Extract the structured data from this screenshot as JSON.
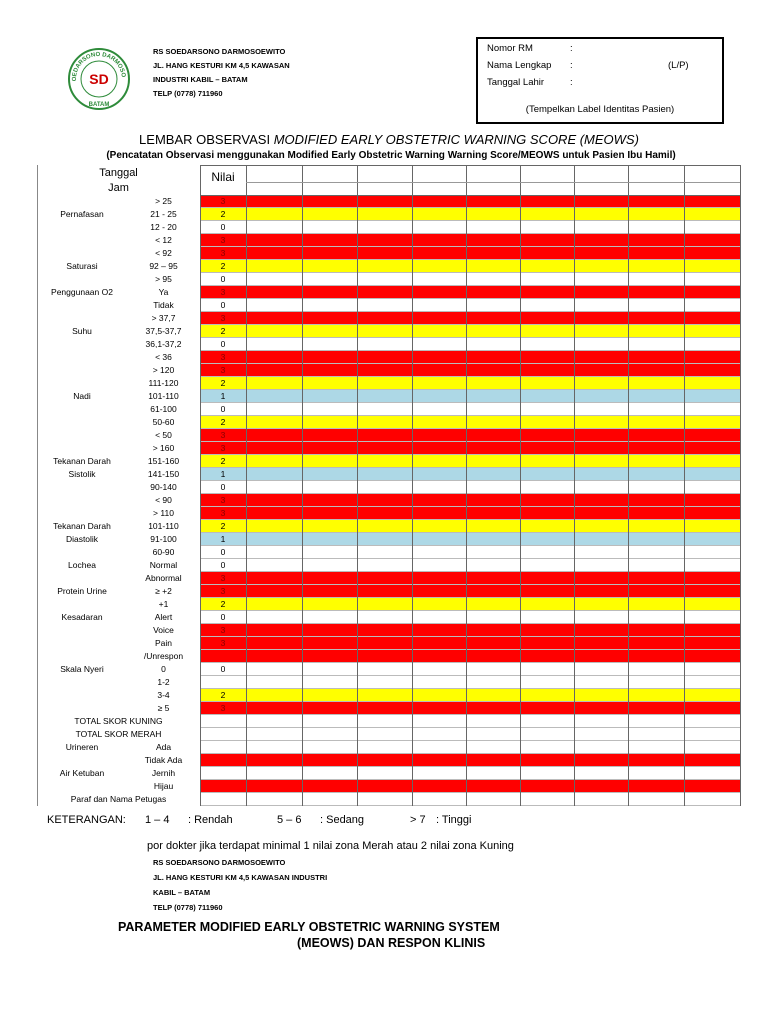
{
  "header": {
    "logo": {
      "ring": "R.S.SOEDARSONO DARMOSOEWITO",
      "mark": "SD",
      "bottom": "BATAM"
    },
    "lines": [
      "RS SOEDARSONO DARMOSOEWITO",
      "JL. HANG KESTURI KM 4,5 KAWASAN",
      "INDUSTRI KABIL – BATAM",
      "TELP (0778) 711960"
    ]
  },
  "patient_box": {
    "fields": [
      {
        "label": "Nomor RM",
        "sep": ":"
      },
      {
        "label": "Nama Lengkap",
        "sep": ":",
        "extra": "(L/P)"
      },
      {
        "label": "Tanggal Lahir",
        "sep": ":"
      }
    ],
    "note": "(Tempelkan Label Identitas Pasien)"
  },
  "title": {
    "plain": "LEMBAR OBSERVASI",
    "italic": "MODIFIED EARLY OBSTETRIC WARNING SCORE (MEOWS)"
  },
  "subtitle": "(Pencatatan Observasi menggunakan Modified Early Obstetric Warning Warning Score/MEOWS untuk Pasien Ibu Hamil)",
  "table": {
    "head": {
      "date": "Tanggal",
      "time": "Jam",
      "score": "Nilai"
    },
    "zone_colors": {
      "red": "#ff0000",
      "yellow": "#ffff00",
      "blue": "#add8e6",
      "white": "#ffffff"
    },
    "rows": [
      {
        "range": "> 25",
        "score": 3,
        "zone": "red"
      },
      {
        "param": "Pernafasan",
        "range": "21 - 25",
        "score": 2,
        "zone": "yellow"
      },
      {
        "range": "12 - 20",
        "score": 0,
        "zone": "white"
      },
      {
        "range": "< 12",
        "score": 3,
        "zone": "red"
      },
      {
        "range": "< 92",
        "score": 3,
        "zone": "red"
      },
      {
        "param": "Saturasi",
        "range": "92 – 95",
        "score": 2,
        "zone": "yellow"
      },
      {
        "range": "> 95",
        "score": 0,
        "zone": "white"
      },
      {
        "param": "Penggunaan O2",
        "range": "Ya",
        "score": 3,
        "zone": "red"
      },
      {
        "range": "Tidak",
        "score": 0,
        "zone": "white"
      },
      {
        "range": "> 37,7",
        "score": 3,
        "zone": "red"
      },
      {
        "param": "Suhu",
        "range": "37,5-37,7",
        "score": 2,
        "zone": "yellow"
      },
      {
        "range": "36,1-37,2",
        "score": 0,
        "zone": "white"
      },
      {
        "range": "< 36",
        "score": 3,
        "zone": "red"
      },
      {
        "range": "> 120",
        "score": 3,
        "zone": "red"
      },
      {
        "range": "111-120",
        "score": 2,
        "zone": "yellow"
      },
      {
        "param": "Nadi",
        "range": "101-110",
        "score": 1,
        "zone": "blue"
      },
      {
        "range": "61-100",
        "score": 0,
        "zone": "white"
      },
      {
        "range": "50-60",
        "score": 2,
        "zone": "yellow"
      },
      {
        "range": "< 50",
        "score": 3,
        "zone": "red"
      },
      {
        "range": "> 160",
        "score": 3,
        "zone": "red"
      },
      {
        "param": "Tekanan Darah",
        "range": "151-160",
        "score": 2,
        "zone": "yellow"
      },
      {
        "param": "Sistolik",
        "range": "141-150",
        "score": 1,
        "zone": "blue"
      },
      {
        "range": "90-140",
        "score": 0,
        "zone": "white"
      },
      {
        "range": "< 90",
        "score": 3,
        "zone": "red"
      },
      {
        "range": "> 110",
        "score": 3,
        "zone": "red"
      },
      {
        "param": "Tekanan Darah",
        "range": "101-110",
        "score": 2,
        "zone": "yellow"
      },
      {
        "param": "Diastolik",
        "range": "91-100",
        "score": 1,
        "zone": "blue"
      },
      {
        "range": "60-90",
        "score": 0,
        "zone": "white"
      },
      {
        "param": "Lochea",
        "range": "Normal",
        "score": 0,
        "zone": "white"
      },
      {
        "range": "Abnormal",
        "score": 3,
        "zone": "red"
      },
      {
        "param": "Protein Urine",
        "range": "≥ +2",
        "score": 3,
        "zone": "red"
      },
      {
        "range": "+1",
        "score": 2,
        "zone": "yellow"
      },
      {
        "param": "Kesadaran",
        "range": "Alert",
        "score": 0,
        "zone": "white"
      },
      {
        "range": "Voice",
        "score": 3,
        "zone": "red"
      },
      {
        "range": "Pain",
        "score": 3,
        "zone": "red"
      },
      {
        "range": "/Unrespon",
        "zone": "red"
      },
      {
        "param": "Skala Nyeri",
        "range": "0",
        "score": 0,
        "zone": "white"
      },
      {
        "range": "1-2",
        "zone": "white"
      },
      {
        "range": "3-4",
        "score": 2,
        "zone": "yellow"
      },
      {
        "range": "≥ 5",
        "score": 3,
        "zone": "red"
      },
      {
        "summary": "TOTAL SKOR KUNING",
        "zone": "white"
      },
      {
        "summary": "TOTAL SKOR MERAH",
        "zone": "white"
      },
      {
        "param": "Urineren",
        "range": "Ada",
        "zone": "white"
      },
      {
        "range": "Tidak Ada",
        "zone": "red"
      },
      {
        "param": "Air Ketuban",
        "range": "Jernih",
        "zone": "white"
      },
      {
        "range": "Hijau",
        "zone": "red"
      },
      {
        "summary": "Paraf dan Nama Petugas",
        "zone": "white"
      }
    ]
  },
  "legend": {
    "label": "KETERANGAN:",
    "items": [
      {
        "range": "1 – 4",
        "level": ": Rendah"
      },
      {
        "range": "5 – 6",
        "level": ": Sedang"
      },
      {
        "range": "> 7",
        "level": ": Tinggi"
      }
    ]
  },
  "note": "por dokter jika terdapat minimal 1 nilai zona Merah atau 2 nilai zona Kuning",
  "footer": {
    "lines": [
      "RS SOEDARSONO DARMOSOEWITO",
      "JL. HANG KESTURI KM 4,5 KAWASAN INDUSTRI",
      "KABIL – BATAM",
      "TELP (0778) 711960"
    ],
    "title": [
      "PARAMETER MODIFIED EARLY OBSTETRIC WARNING SYSTEM",
      "(MEOWS) DAN RESPON KLINIS"
    ]
  }
}
